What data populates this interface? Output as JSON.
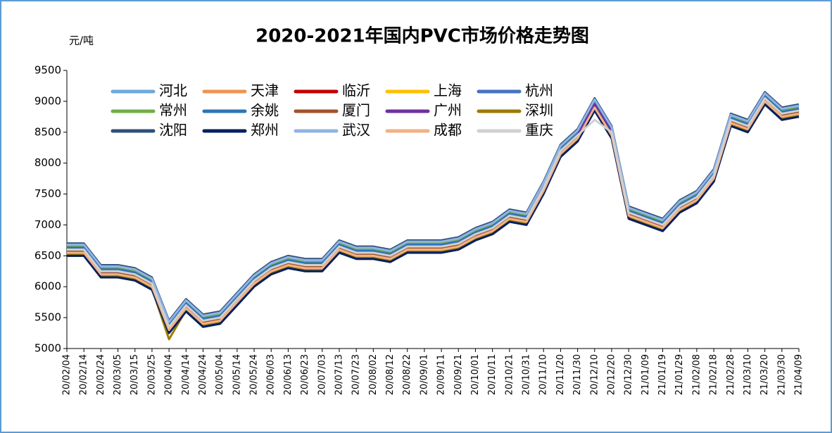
{
  "chart_data": {
    "type": "line",
    "title": "2020-2021年国内PVC市场价格走势图",
    "y_label": "元/吨",
    "categories": [
      "20/02/04",
      "20/02/14",
      "20/02/24",
      "20/03/05",
      "20/03/15",
      "20/03/25",
      "20/04/04",
      "20/04/14",
      "20/04/24",
      "20/05/04",
      "20/05/14",
      "20/05/24",
      "20/06/03",
      "20/06/13",
      "20/06/23",
      "20/07/03",
      "20/07/13",
      "20/07/23",
      "20/08/02",
      "20/08/12",
      "20/08/22",
      "20/09/01",
      "20/09/11",
      "20/09/21",
      "20/10/01",
      "20/10/11",
      "20/10/21",
      "20/10/31",
      "20/11/10",
      "20/11/20",
      "20/11/30",
      "20/12/10",
      "20/12/20",
      "20/12/30",
      "21/01/09",
      "21/01/19",
      "21/01/29",
      "21/02/08",
      "21/02/18",
      "21/02/28",
      "21/03/10",
      "21/03/20",
      "21/03/30",
      "21/04/09"
    ],
    "ylim": [
      5000,
      9500
    ],
    "yticks": [
      5000,
      5500,
      6000,
      6500,
      7000,
      7500,
      8000,
      8500,
      9000,
      9500
    ],
    "series": [
      {
        "name": "河北",
        "color": "#6fa8dc",
        "values": [
          6680,
          6680,
          6330,
          6330,
          6280,
          6130,
          5430,
          5780,
          5530,
          5580,
          5880,
          6180,
          6380,
          6480,
          6430,
          6430,
          6730,
          6630,
          6630,
          6580,
          6730,
          6730,
          6730,
          6780,
          6930,
          7030,
          7230,
          7180,
          7680,
          8280,
          8530,
          9030,
          8580,
          7280,
          7180,
          7080,
          7380,
          7530,
          7880,
          8780,
          8680,
          9130,
          8880,
          8930
        ]
      },
      {
        "name": "天津",
        "color": "#f0934f",
        "values": [
          6500,
          6500,
          6150,
          6150,
          6100,
          5950,
          5250,
          5600,
          5350,
          5400,
          5700,
          6000,
          6200,
          6300,
          6250,
          6250,
          6550,
          6450,
          6450,
          6400,
          6550,
          6550,
          6550,
          6600,
          6750,
          6850,
          7050,
          7000,
          7500,
          8100,
          8350,
          8850,
          8400,
          7100,
          7000,
          6900,
          7200,
          7350,
          7700,
          8600,
          8500,
          8950,
          8700,
          8750
        ]
      },
      {
        "name": "临沂",
        "color": "#c00000",
        "values": [
          6570,
          6570,
          6220,
          6220,
          6170,
          6020,
          5320,
          5670,
          5420,
          5470,
          5770,
          6070,
          6270,
          6370,
          6320,
          6320,
          6620,
          6520,
          6520,
          6470,
          6620,
          6620,
          6620,
          6670,
          6820,
          6920,
          7120,
          7070,
          7570,
          8170,
          8420,
          8920,
          8470,
          7170,
          7070,
          6970,
          7270,
          7420,
          7770,
          8670,
          8570,
          9020,
          8770,
          8820
        ]
      },
      {
        "name": "上海",
        "color": "#ffc000",
        "values": [
          6600,
          6600,
          6250,
          6250,
          6200,
          6050,
          5350,
          5700,
          5450,
          5500,
          5800,
          6100,
          6300,
          6400,
          6350,
          6350,
          6650,
          6550,
          6550,
          6500,
          6650,
          6650,
          6650,
          6700,
          6850,
          6950,
          7150,
          7100,
          7600,
          8200,
          8450,
          8950,
          8500,
          7200,
          7100,
          7000,
          7300,
          7450,
          7800,
          8700,
          8600,
          9050,
          8800,
          8850
        ]
      },
      {
        "name": "杭州",
        "color": "#4472c4",
        "values": [
          6630,
          6630,
          6280,
          6280,
          6230,
          6080,
          5380,
          5730,
          5480,
          5530,
          5830,
          6130,
          6330,
          6430,
          6380,
          6380,
          6680,
          6580,
          6580,
          6530,
          6680,
          6680,
          6680,
          6730,
          6880,
          6980,
          7180,
          7130,
          7630,
          8230,
          8480,
          8980,
          8530,
          7230,
          7130,
          7030,
          7330,
          7480,
          7830,
          8730,
          8630,
          9080,
          8830,
          8880
        ]
      },
      {
        "name": "常州",
        "color": "#70ad47",
        "values": [
          6650,
          6650,
          6300,
          6300,
          6250,
          6100,
          5400,
          5750,
          5500,
          5550,
          5850,
          6150,
          6350,
          6450,
          6400,
          6400,
          6700,
          6600,
          6600,
          6550,
          6700,
          6700,
          6700,
          6750,
          6900,
          7000,
          7200,
          7150,
          7650,
          8250,
          8500,
          9000,
          8550,
          7250,
          7150,
          7050,
          7350,
          7500,
          7850,
          8750,
          8650,
          9100,
          8850,
          8900
        ]
      },
      {
        "name": "余姚",
        "color": "#2e75b6",
        "values": [
          6630,
          6630,
          6280,
          6280,
          6230,
          6080,
          5380,
          5730,
          5480,
          5530,
          5830,
          6130,
          6330,
          6430,
          6380,
          6380,
          6680,
          6580,
          6580,
          6530,
          6680,
          6680,
          6680,
          6730,
          6880,
          6980,
          7180,
          7130,
          7630,
          8230,
          8480,
          8980,
          8530,
          7230,
          7130,
          7030,
          7330,
          7480,
          7830,
          8730,
          8630,
          9080,
          8830,
          8880
        ]
      },
      {
        "name": "厦门",
        "color": "#a0522d",
        "values": [
          6570,
          6570,
          6220,
          6220,
          6170,
          6020,
          5320,
          5670,
          5420,
          5470,
          5770,
          6070,
          6270,
          6370,
          6320,
          6320,
          6620,
          6520,
          6520,
          6470,
          6620,
          6620,
          6620,
          6670,
          6820,
          6920,
          7120,
          7070,
          7570,
          8170,
          8420,
          8920,
          8470,
          7170,
          7070,
          6970,
          7270,
          7420,
          7770,
          8670,
          8570,
          9020,
          8770,
          8820
        ]
      },
      {
        "name": "广州",
        "color": "#7030a0",
        "values": [
          6600,
          6600,
          6250,
          6250,
          6200,
          6050,
          5350,
          5700,
          5450,
          5500,
          5800,
          6100,
          6300,
          6400,
          6350,
          6350,
          6650,
          6550,
          6550,
          6500,
          6650,
          6650,
          6650,
          6700,
          6850,
          6950,
          7150,
          7100,
          7600,
          8200,
          8450,
          8950,
          8500,
          7200,
          7100,
          7000,
          7300,
          7450,
          7800,
          8700,
          8600,
          9050,
          8800,
          8850
        ]
      },
      {
        "name": "深圳",
        "color": "#9c7a00",
        "values": [
          6520,
          6520,
          6170,
          6170,
          6120,
          5970,
          5150,
          5620,
          5370,
          5420,
          5720,
          6020,
          6220,
          6320,
          6270,
          6270,
          6570,
          6470,
          6470,
          6420,
          6570,
          6570,
          6570,
          6620,
          6770,
          6870,
          7070,
          7020,
          7520,
          8120,
          8370,
          8870,
          8420,
          7120,
          7020,
          6920,
          7220,
          7370,
          7720,
          8620,
          8520,
          8970,
          8720,
          8770
        ]
      },
      {
        "name": "沈阳",
        "color": "#2f4f7f",
        "values": [
          6700,
          6700,
          6350,
          6350,
          6300,
          6150,
          5450,
          5800,
          5550,
          5600,
          5900,
          6200,
          6400,
          6500,
          6450,
          6450,
          6750,
          6650,
          6650,
          6600,
          6750,
          6750,
          6750,
          6800,
          6950,
          7050,
          7250,
          7200,
          7700,
          8300,
          8550,
          9050,
          8600,
          7300,
          7200,
          7100,
          7400,
          7550,
          7900,
          8800,
          8700,
          9150,
          8900,
          8950
        ]
      },
      {
        "name": "郑州",
        "color": "#002060",
        "values": [
          6500,
          6500,
          6150,
          6150,
          6100,
          5950,
          5250,
          5600,
          5350,
          5400,
          5700,
          6000,
          6200,
          6300,
          6250,
          6250,
          6550,
          6450,
          6450,
          6400,
          6550,
          6550,
          6550,
          6600,
          6750,
          6850,
          7050,
          7000,
          7500,
          8100,
          8350,
          8850,
          8400,
          7100,
          7000,
          6900,
          7200,
          7350,
          7700,
          8600,
          8500,
          8950,
          8700,
          8750
        ]
      },
      {
        "name": "武汉",
        "color": "#8fb4e3",
        "values": [
          6680,
          6680,
          6330,
          6330,
          6280,
          6130,
          5430,
          5780,
          5530,
          5580,
          5880,
          6180,
          6380,
          6480,
          6430,
          6430,
          6730,
          6630,
          6630,
          6580,
          6730,
          6730,
          6730,
          6780,
          6930,
          7030,
          7230,
          7180,
          7680,
          8280,
          8530,
          9030,
          8580,
          7280,
          7180,
          7080,
          7380,
          7530,
          7880,
          8780,
          8680,
          9130,
          8880,
          8930
        ]
      },
      {
        "name": "成都",
        "color": "#f4b183",
        "values": [
          6550,
          6550,
          6200,
          6200,
          6150,
          6000,
          5300,
          5650,
          5400,
          5450,
          5750,
          6050,
          6250,
          6350,
          6300,
          6300,
          6600,
          6500,
          6500,
          6450,
          6600,
          6600,
          6600,
          6650,
          6800,
          6900,
          7100,
          7050,
          7550,
          8150,
          8400,
          8900,
          8450,
          7150,
          7050,
          6950,
          7250,
          7400,
          7750,
          8650,
          8550,
          9000,
          8750,
          8800
        ]
      },
      {
        "name": "重庆",
        "color": "#d0d0d0",
        "values": [
          6600,
          6600,
          6250,
          6250,
          6200,
          6050,
          5350,
          5700,
          5450,
          5500,
          5800,
          6100,
          6300,
          6400,
          6350,
          6350,
          6650,
          6550,
          6550,
          6500,
          6650,
          6650,
          6650,
          6700,
          6850,
          6950,
          7150,
          7100,
          7600,
          8200,
          8450,
          8700,
          8500,
          7200,
          7100,
          7000,
          7300,
          7450,
          7800,
          8700,
          8600,
          9050,
          8800,
          8850
        ]
      }
    ]
  }
}
